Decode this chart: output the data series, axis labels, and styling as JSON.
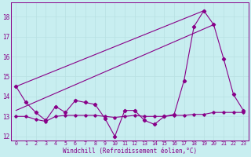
{
  "xlabel": "Windchill (Refroidissement éolien,°C)",
  "background_color": "#c8eef0",
  "grid_color": "#b8e0e2",
  "line_color": "#880088",
  "x": [
    0,
    1,
    2,
    3,
    4,
    5,
    6,
    7,
    8,
    9,
    10,
    11,
    12,
    13,
    14,
    15,
    16,
    17,
    18,
    19,
    20,
    21,
    22,
    23
  ],
  "series1": [
    14.5,
    13.7,
    13.2,
    12.8,
    13.5,
    13.2,
    13.8,
    13.7,
    13.6,
    12.9,
    12.0,
    13.3,
    13.3,
    12.8,
    12.6,
    13.0,
    13.1,
    14.8,
    17.5,
    18.3,
    17.6,
    15.9,
    14.1,
    13.3
  ],
  "trend1_x": [
    0,
    19
  ],
  "trend1_y": [
    14.5,
    18.3
  ],
  "trend2_x": [
    0,
    20
  ],
  "trend2_y": [
    13.3,
    17.6
  ],
  "series3": [
    13.0,
    13.0,
    12.85,
    12.75,
    13.0,
    13.05,
    13.05,
    13.05,
    13.05,
    13.0,
    12.95,
    13.0,
    13.05,
    13.0,
    13.0,
    13.0,
    13.05,
    13.05,
    13.1,
    13.1,
    13.2,
    13.2,
    13.2,
    13.2
  ],
  "ylim": [
    11.8,
    18.7
  ],
  "xlim": [
    -0.5,
    23.5
  ],
  "yticks": [
    12,
    13,
    14,
    15,
    16,
    17,
    18
  ],
  "xticks": [
    0,
    1,
    2,
    3,
    4,
    5,
    6,
    7,
    8,
    9,
    10,
    11,
    12,
    13,
    14,
    15,
    16,
    17,
    18,
    19,
    20,
    21,
    22,
    23
  ]
}
